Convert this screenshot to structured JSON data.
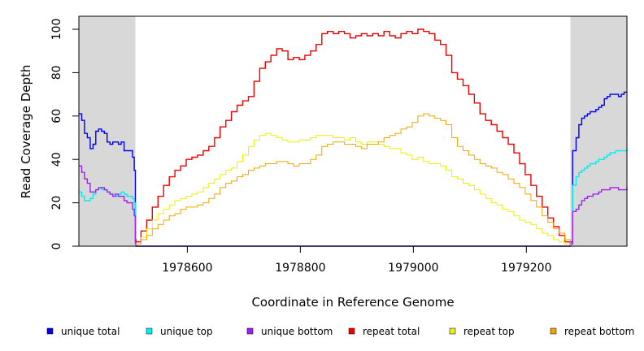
{
  "chart_data": {
    "type": "line",
    "xlabel": "Coordinate in Reference Genome",
    "ylabel": "Read Coverage Depth",
    "xlim": [
      1978408,
      1979378
    ],
    "ylim": [
      0,
      106
    ],
    "x_ticks": [
      1978600,
      1978800,
      1979000,
      1979200
    ],
    "y_ticks": [
      0,
      20,
      40,
      60,
      80,
      100
    ],
    "grid": false,
    "legend_position": "bottom",
    "shaded_regions": [
      {
        "x": [
          1978408,
          1978508
        ],
        "color": "#d8d8d8"
      },
      {
        "x": [
          1979278,
          1979378
        ],
        "color": "#d8d8d8"
      }
    ],
    "series": [
      {
        "name": "unique total",
        "color": "#0000ee",
        "x": [
          1978408,
          1978413,
          1978418,
          1978423,
          1978428,
          1978433,
          1978438,
          1978443,
          1978448,
          1978453,
          1978458,
          1978463,
          1978468,
          1978473,
          1978478,
          1978483,
          1978488,
          1978493,
          1978498,
          1978503,
          1978506,
          1978508,
          1978509,
          1979277,
          1979278,
          1979282,
          1979288,
          1979293,
          1979298,
          1979303,
          1979308,
          1979313,
          1979318,
          1979323,
          1979328,
          1979333,
          1979338,
          1979343,
          1979348,
          1979353,
          1979358,
          1979363,
          1979368,
          1979373,
          1979378
        ],
        "values": [
          61,
          58,
          52,
          50,
          45,
          47,
          53,
          54,
          53,
          52,
          48,
          47,
          48,
          48,
          47,
          48,
          44,
          44,
          44,
          41,
          35,
          3,
          0,
          0,
          2,
          44,
          50,
          56,
          59,
          60,
          61,
          62,
          62,
          63,
          64,
          65,
          68,
          69,
          70,
          70,
          70,
          69,
          70,
          71,
          71
        ]
      },
      {
        "name": "unique top",
        "color": "#00eeee",
        "x": [
          1978408,
          1978413,
          1978418,
          1978423,
          1978428,
          1978433,
          1978438,
          1978443,
          1978448,
          1978453,
          1978458,
          1978463,
          1978468,
          1978473,
          1978478,
          1978483,
          1978488,
          1978493,
          1978498,
          1978503,
          1978506,
          1978508,
          1978509,
          1979277,
          1979278,
          1979282,
          1979288,
          1979293,
          1979298,
          1979303,
          1979308,
          1979313,
          1979318,
          1979323,
          1979328,
          1979333,
          1979338,
          1979343,
          1979348,
          1979353,
          1979358,
          1979363,
          1979368,
          1979373,
          1979378
        ],
        "values": [
          25,
          23,
          21,
          21,
          22,
          24,
          26,
          27,
          26,
          26,
          25,
          24,
          24,
          23,
          24,
          25,
          24,
          23,
          23,
          22,
          20,
          2,
          0,
          0,
          1,
          28,
          32,
          34,
          35,
          36,
          37,
          38,
          38,
          39,
          40,
          40,
          41,
          42,
          43,
          43,
          44,
          44,
          44,
          44,
          45
        ]
      },
      {
        "name": "unique bottom",
        "color": "#a020f0",
        "x": [
          1978408,
          1978413,
          1978418,
          1978423,
          1978428,
          1978433,
          1978438,
          1978443,
          1978448,
          1978453,
          1978458,
          1978463,
          1978468,
          1978473,
          1978478,
          1978483,
          1978488,
          1978493,
          1978498,
          1978503,
          1978506,
          1978508,
          1978509,
          1979277,
          1979278,
          1979282,
          1979288,
          1979293,
          1979298,
          1979303,
          1979308,
          1979313,
          1979318,
          1979323,
          1979328,
          1979333,
          1979338,
          1979343,
          1979348,
          1979353,
          1979358,
          1979363,
          1979368,
          1979373,
          1979378
        ],
        "values": [
          37,
          34,
          31,
          29,
          25,
          25,
          26,
          27,
          27,
          26,
          25,
          24,
          23,
          24,
          23,
          23,
          21,
          20,
          20,
          17,
          14,
          1,
          0,
          0,
          1,
          16,
          17,
          19,
          21,
          22,
          23,
          23,
          24,
          24,
          25,
          26,
          26,
          26,
          27,
          27,
          27,
          26,
          26,
          26,
          27
        ]
      },
      {
        "name": "repeat total",
        "color": "#ee0000",
        "x": [
          1978508,
          1978518,
          1978528,
          1978538,
          1978548,
          1978558,
          1978568,
          1978578,
          1978588,
          1978598,
          1978608,
          1978618,
          1978628,
          1978638,
          1978648,
          1978658,
          1978668,
          1978678,
          1978688,
          1978698,
          1978708,
          1978718,
          1978728,
          1978738,
          1978748,
          1978758,
          1978768,
          1978778,
          1978788,
          1978798,
          1978808,
          1978818,
          1978828,
          1978838,
          1978848,
          1978858,
          1978868,
          1978878,
          1978888,
          1978898,
          1978908,
          1978918,
          1978928,
          1978938,
          1978948,
          1978958,
          1978968,
          1978978,
          1978988,
          1978998,
          1979008,
          1979018,
          1979028,
          1979038,
          1979048,
          1979058,
          1979068,
          1979078,
          1979088,
          1979098,
          1979108,
          1979118,
          1979128,
          1979138,
          1979148,
          1979158,
          1979168,
          1979178,
          1979188,
          1979198,
          1979208,
          1979218,
          1979228,
          1979238,
          1979248,
          1979258,
          1979268,
          1979278
        ],
        "values": [
          2,
          7,
          12,
          18,
          23,
          28,
          32,
          35,
          37,
          40,
          41,
          42,
          44,
          46,
          50,
          55,
          58,
          62,
          65,
          67,
          69,
          76,
          82,
          85,
          88,
          91,
          90,
          86,
          87,
          86,
          88,
          90,
          93,
          98,
          99,
          98,
          99,
          98,
          96,
          97,
          98,
          97,
          98,
          97,
          99,
          97,
          96,
          98,
          99,
          98,
          100,
          99,
          98,
          95,
          93,
          88,
          80,
          77,
          74,
          70,
          66,
          61,
          58,
          56,
          53,
          50,
          47,
          43,
          38,
          33,
          28,
          23,
          18,
          13,
          9,
          5,
          2,
          0
        ]
      },
      {
        "name": "repeat top",
        "color": "#eeee00",
        "x": [
          1978508,
          1978518,
          1978528,
          1978538,
          1978548,
          1978558,
          1978568,
          1978578,
          1978588,
          1978598,
          1978608,
          1978618,
          1978628,
          1978638,
          1978648,
          1978658,
          1978668,
          1978678,
          1978688,
          1978698,
          1978708,
          1978718,
          1978728,
          1978738,
          1978748,
          1978758,
          1978768,
          1978778,
          1978788,
          1978798,
          1978808,
          1978818,
          1978828,
          1978838,
          1978848,
          1978858,
          1978868,
          1978878,
          1978888,
          1978898,
          1978908,
          1978918,
          1978928,
          1978938,
          1978948,
          1978958,
          1978968,
          1978978,
          1978988,
          1978998,
          1979008,
          1979018,
          1979028,
          1979038,
          1979048,
          1979058,
          1979068,
          1979078,
          1979088,
          1979098,
          1979108,
          1979118,
          1979128,
          1979138,
          1979148,
          1979158,
          1979168,
          1979178,
          1979188,
          1979198,
          1979208,
          1979218,
          1979228,
          1979238,
          1979248,
          1979258,
          1979268,
          1979278
        ],
        "values": [
          1,
          4,
          8,
          12,
          15,
          17,
          19,
          21,
          22,
          23,
          24,
          25,
          27,
          29,
          31,
          33,
          35,
          36,
          39,
          42,
          46,
          49,
          51,
          52,
          51,
          50,
          49,
          48,
          48,
          49,
          49,
          50,
          51,
          51,
          51,
          50,
          50,
          49,
          50,
          48,
          47,
          48,
          48,
          47,
          46,
          45,
          45,
          43,
          42,
          40,
          41,
          39,
          38,
          38,
          37,
          35,
          32,
          31,
          29,
          28,
          26,
          24,
          22,
          20,
          19,
          17,
          16,
          14,
          12,
          11,
          10,
          8,
          6,
          5,
          3,
          2,
          1,
          0
        ]
      },
      {
        "name": "repeat bottom",
        "color": "#eea500",
        "x": [
          1978508,
          1978518,
          1978528,
          1978538,
          1978548,
          1978558,
          1978568,
          1978578,
          1978588,
          1978598,
          1978608,
          1978618,
          1978628,
          1978638,
          1978648,
          1978658,
          1978668,
          1978678,
          1978688,
          1978698,
          1978708,
          1978718,
          1978728,
          1978738,
          1978748,
          1978758,
          1978768,
          1978778,
          1978788,
          1978798,
          1978808,
          1978818,
          1978828,
          1978838,
          1978848,
          1978858,
          1978868,
          1978878,
          1978888,
          1978898,
          1978908,
          1978918,
          1978928,
          1978938,
          1978948,
          1978958,
          1978968,
          1978978,
          1978988,
          1978998,
          1979008,
          1979018,
          1979028,
          1979038,
          1979048,
          1979058,
          1979068,
          1979078,
          1979088,
          1979098,
          1979108,
          1979118,
          1979128,
          1979138,
          1979148,
          1979158,
          1979168,
          1979178,
          1979188,
          1979198,
          1979208,
          1979218,
          1979228,
          1979238,
          1979248,
          1979258,
          1979268,
          1979278
        ],
        "values": [
          1,
          3,
          5,
          8,
          10,
          12,
          14,
          15,
          17,
          18,
          18,
          19,
          20,
          22,
          24,
          27,
          29,
          30,
          32,
          33,
          35,
          36,
          37,
          38,
          38,
          39,
          39,
          38,
          37,
          38,
          38,
          40,
          42,
          46,
          47,
          48,
          48,
          47,
          47,
          46,
          45,
          47,
          47,
          48,
          50,
          51,
          52,
          54,
          55,
          57,
          60,
          61,
          60,
          59,
          58,
          56,
          50,
          46,
          44,
          42,
          40,
          38,
          37,
          36,
          34,
          33,
          31,
          29,
          27,
          24,
          21,
          18,
          14,
          11,
          8,
          6,
          3,
          0
        ]
      }
    ]
  }
}
